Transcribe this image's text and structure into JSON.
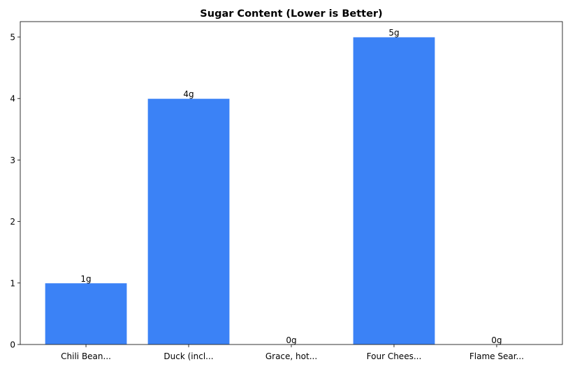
{
  "chart_data": {
    "type": "bar",
    "title": "Sugar Content (Lower is Better)",
    "xlabel": "",
    "ylabel": "",
    "categories": [
      "Chili Bean...",
      "Duck (incl...",
      "Grace, hot...",
      "Four Chees...",
      "Flame Sear..."
    ],
    "values": [
      1,
      4,
      0,
      5,
      0
    ],
    "data_labels": [
      "1g",
      "4g",
      "0g",
      "5g",
      "0g"
    ],
    "ylim": [
      0,
      5.25
    ],
    "yticks": [
      0,
      1,
      2,
      3,
      4,
      5
    ],
    "grid": false,
    "bar_color": "#3b82f6",
    "bar_edge_color": "#ffffff"
  }
}
